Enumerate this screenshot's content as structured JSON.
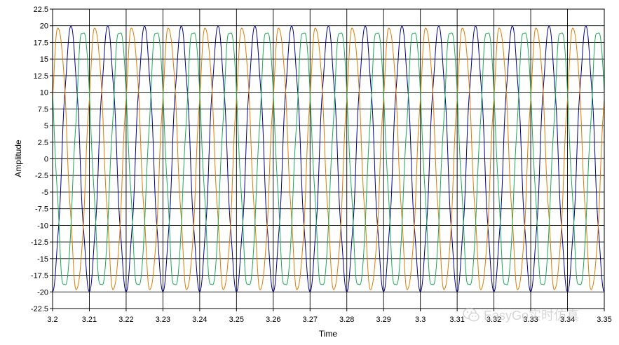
{
  "chart_data": {
    "type": "line",
    "xlabel": "Time",
    "ylabel": "Amplitude",
    "xlim": [
      3.2,
      3.35
    ],
    "ylim": [
      -22.5,
      22.5
    ],
    "x_ticks": [
      "3.2",
      "3.21",
      "3.22",
      "3.23",
      "3.24",
      "3.25",
      "3.26",
      "3.27",
      "3.28",
      "3.29",
      "3.3",
      "3.31",
      "3.32",
      "3.33",
      "3.34",
      "3.35"
    ],
    "y_ticks": [
      "22.5",
      "20",
      "17.5",
      "15",
      "12.5",
      "10",
      "7.5",
      "5",
      "2.5",
      "0",
      "-2.5",
      "-5",
      "-7.5",
      "-10",
      "-12.5",
      "-15",
      "-17.5",
      "-20",
      "-22.5"
    ],
    "grid": true,
    "legend": "none",
    "frequency_hz": 100,
    "amplitude": 19.6,
    "series": [
      {
        "color": "#00008b",
        "phase_deg": -90,
        "start": {
          "x": 3.2,
          "y": 3.5
        }
      },
      {
        "color": "#e07b00",
        "phase_deg": 30,
        "start": {
          "x": 3.2,
          "y": -19
        }
      },
      {
        "color": "#1aaa55",
        "phase_deg": 150,
        "start": {
          "x": 3.2,
          "y": 16
        }
      }
    ]
  },
  "watermark": {
    "text": "EasyGo实时仿真",
    "icon": "wechat-icon"
  }
}
